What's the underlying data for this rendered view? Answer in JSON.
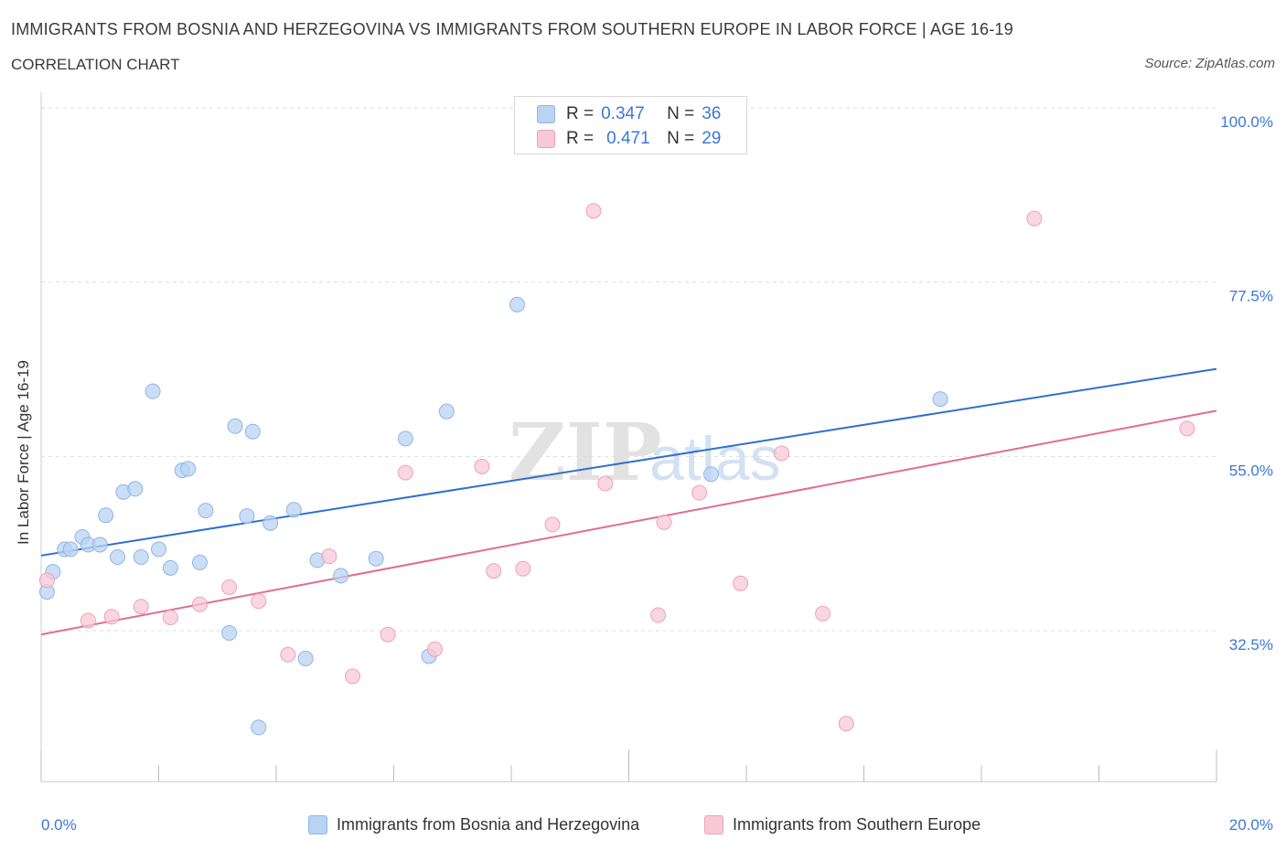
{
  "header": {
    "title": "IMMIGRANTS FROM BOSNIA AND HERZEGOVINA VS IMMIGRANTS FROM SOUTHERN EUROPE IN LABOR FORCE | AGE 16-19",
    "subtitle": "CORRELATION CHART",
    "source": "Source: ZipAtlas.com"
  },
  "legend": {
    "r_label": "R =",
    "n_label": "N =",
    "series": [
      {
        "name": "Immigrants from Bosnia and Herzegovina",
        "r": "0.347",
        "n": "36"
      },
      {
        "name": "Immigrants from Southern Europe",
        "r": "0.471",
        "n": "29"
      }
    ]
  },
  "watermark": {
    "zip": "ZIP",
    "atlas": "atlas"
  },
  "colors": {
    "blue_fill": "#b9d3f3",
    "blue_stroke": "#8fb6e6",
    "blue_line": "#2f6fcf",
    "pink_fill": "#f7c8d6",
    "pink_stroke": "#eca3bb",
    "pink_line": "#e06c95",
    "axis_text": "#3b78d8",
    "grid": "#dddddd"
  },
  "chart_data": {
    "type": "scatter",
    "title": "IMMIGRANTS FROM BOSNIA AND HERZEGOVINA VS IMMIGRANTS FROM SOUTHERN EUROPE IN LABOR FORCE | AGE 16-19",
    "xlabel": "",
    "ylabel": "In Labor Force | Age 16-19",
    "xlim": [
      0,
      20
    ],
    "ylim": [
      13,
      102
    ],
    "x_tick_labels": [
      "0.0%",
      "20.0%"
    ],
    "y_ticks": [
      32.5,
      55.0,
      77.5,
      100.0
    ],
    "y_tick_labels": [
      "32.5%",
      "55.0%",
      "77.5%",
      "100.0%"
    ],
    "series": [
      {
        "name": "Immigrants from Bosnia and Herzegovina",
        "r": 0.347,
        "n": 36,
        "trend": {
          "x": [
            0,
            20
          ],
          "y": [
            42.2,
            66.3
          ]
        },
        "points": [
          {
            "x": 0.1,
            "y": 37.5
          },
          {
            "x": 0.2,
            "y": 40.1
          },
          {
            "x": 0.4,
            "y": 43.0
          },
          {
            "x": 0.5,
            "y": 43.0
          },
          {
            "x": 0.7,
            "y": 44.6
          },
          {
            "x": 0.8,
            "y": 43.6
          },
          {
            "x": 1.0,
            "y": 43.6
          },
          {
            "x": 1.1,
            "y": 47.4
          },
          {
            "x": 1.3,
            "y": 42.0
          },
          {
            "x": 1.4,
            "y": 50.4
          },
          {
            "x": 1.6,
            "y": 50.8
          },
          {
            "x": 1.7,
            "y": 42.0
          },
          {
            "x": 1.9,
            "y": 63.4
          },
          {
            "x": 2.0,
            "y": 43.0
          },
          {
            "x": 2.2,
            "y": 40.6
          },
          {
            "x": 2.4,
            "y": 53.2
          },
          {
            "x": 2.5,
            "y": 53.4
          },
          {
            "x": 2.7,
            "y": 41.3
          },
          {
            "x": 2.8,
            "y": 48.0
          },
          {
            "x": 3.2,
            "y": 32.2
          },
          {
            "x": 3.3,
            "y": 58.9
          },
          {
            "x": 3.5,
            "y": 47.3
          },
          {
            "x": 3.6,
            "y": 58.2
          },
          {
            "x": 3.7,
            "y": 20.0
          },
          {
            "x": 3.9,
            "y": 46.4
          },
          {
            "x": 4.3,
            "y": 48.1
          },
          {
            "x": 4.5,
            "y": 28.9
          },
          {
            "x": 4.7,
            "y": 41.6
          },
          {
            "x": 5.1,
            "y": 39.6
          },
          {
            "x": 5.7,
            "y": 41.8
          },
          {
            "x": 6.2,
            "y": 57.3
          },
          {
            "x": 6.6,
            "y": 29.2
          },
          {
            "x": 6.9,
            "y": 60.8
          },
          {
            "x": 8.1,
            "y": 74.6
          },
          {
            "x": 11.4,
            "y": 52.7
          },
          {
            "x": 15.3,
            "y": 62.4
          }
        ]
      },
      {
        "name": "Immigrants from Southern Europe",
        "r": 0.471,
        "n": 29,
        "trend": {
          "x": [
            0,
            20
          ],
          "y": [
            32.0,
            60.9
          ]
        },
        "points": [
          {
            "x": 0.1,
            "y": 39.0
          },
          {
            "x": 0.8,
            "y": 33.8
          },
          {
            "x": 1.2,
            "y": 34.3
          },
          {
            "x": 1.7,
            "y": 35.6
          },
          {
            "x": 2.2,
            "y": 34.2
          },
          {
            "x": 2.7,
            "y": 35.9
          },
          {
            "x": 3.2,
            "y": 38.1
          },
          {
            "x": 3.7,
            "y": 36.3
          },
          {
            "x": 4.2,
            "y": 29.4
          },
          {
            "x": 4.9,
            "y": 42.1
          },
          {
            "x": 5.3,
            "y": 26.6
          },
          {
            "x": 5.9,
            "y": 32.0
          },
          {
            "x": 6.2,
            "y": 52.9
          },
          {
            "x": 6.7,
            "y": 30.1
          },
          {
            "x": 7.5,
            "y": 53.7
          },
          {
            "x": 7.7,
            "y": 40.2
          },
          {
            "x": 8.2,
            "y": 40.5
          },
          {
            "x": 8.7,
            "y": 46.2
          },
          {
            "x": 9.4,
            "y": 86.7
          },
          {
            "x": 9.6,
            "y": 51.5
          },
          {
            "x": 10.5,
            "y": 34.5
          },
          {
            "x": 10.6,
            "y": 46.5
          },
          {
            "x": 11.2,
            "y": 50.3
          },
          {
            "x": 11.9,
            "y": 38.6
          },
          {
            "x": 12.6,
            "y": 55.4
          },
          {
            "x": 13.3,
            "y": 34.7
          },
          {
            "x": 13.7,
            "y": 20.5
          },
          {
            "x": 16.9,
            "y": 85.7
          },
          {
            "x": 19.5,
            "y": 58.6
          }
        ]
      }
    ]
  }
}
